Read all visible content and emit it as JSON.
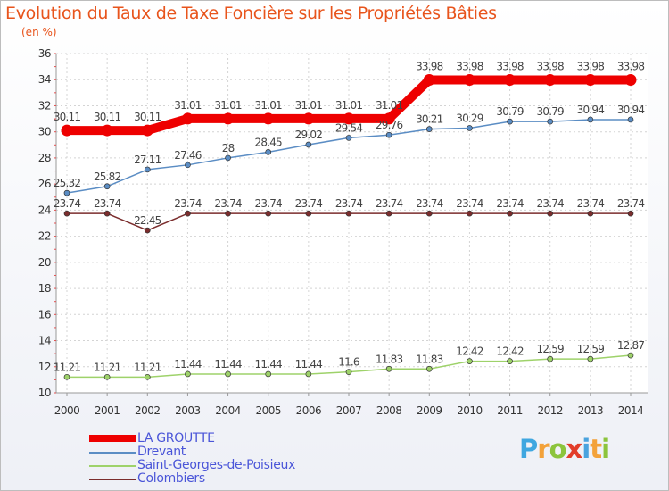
{
  "header": {
    "title": "Evolution du Taux de Taxe Foncière sur les Propriétés Bâties",
    "unit": "(en %)"
  },
  "chart_data": {
    "type": "line",
    "title": "Evolution du Taux de Taxe Foncière sur les Propriétés Bâties",
    "ylabel": "(en %)",
    "xlabel": "",
    "ylim": [
      10,
      36
    ],
    "yticks": [
      10,
      12,
      14,
      16,
      18,
      20,
      22,
      24,
      26,
      28,
      30,
      32,
      34,
      36
    ],
    "categories": [
      "2000",
      "2001",
      "2002",
      "2003",
      "2004",
      "2005",
      "2006",
      "2007",
      "2008",
      "2009",
      "2010",
      "2011",
      "2012",
      "2013",
      "2014"
    ],
    "grid": true,
    "series": [
      {
        "name": "LA GROUTTE",
        "color": "#ee0000",
        "values": [
          30.11,
          30.11,
          30.11,
          31.01,
          31.01,
          31.01,
          31.01,
          31.01,
          31.01,
          33.98,
          33.98,
          33.98,
          33.98,
          33.98,
          33.98
        ],
        "labels": [
          "30.11",
          "30.11",
          "30.11",
          "31.01",
          "31.01",
          "31.01",
          "31.01",
          "31.01",
          "31.01",
          "33.98",
          "33.98",
          "33.98",
          "33.98",
          "33.98",
          "33.98"
        ]
      },
      {
        "name": "Drevant",
        "color": "#5b8dc4",
        "values": [
          25.32,
          25.82,
          27.11,
          27.46,
          28,
          28.45,
          29.02,
          29.54,
          29.76,
          30.21,
          30.29,
          30.79,
          30.79,
          30.94,
          30.94
        ],
        "labels": [
          "25.32",
          "25.82",
          "27.11",
          "27.46",
          "28",
          "28.45",
          "29.02",
          "29.54",
          "29.76",
          "30.21",
          "30.29",
          "30.79",
          "30.79",
          "30.94",
          "30.94"
        ]
      },
      {
        "name": "Saint-Georges-de-Poisieux",
        "color": "#9ed26a",
        "values": [
          11.21,
          11.21,
          11.21,
          11.44,
          11.44,
          11.44,
          11.44,
          11.6,
          11.83,
          11.83,
          12.42,
          12.42,
          12.59,
          12.59,
          12.87
        ],
        "labels": [
          "11.21",
          "11.21",
          "11.21",
          "11.44",
          "11.44",
          "11.44",
          "11.44",
          "11.6",
          "11.83",
          "11.83",
          "12.42",
          "12.42",
          "12.59",
          "12.59",
          "12.87"
        ]
      },
      {
        "name": "Colombiers",
        "color": "#7b2d2d",
        "values": [
          23.74,
          23.74,
          22.45,
          23.74,
          23.74,
          23.74,
          23.74,
          23.74,
          23.74,
          23.74,
          23.74,
          23.74,
          23.74,
          23.74,
          23.74
        ],
        "labels": [
          "23.74",
          "23.74",
          "22.45",
          "23.74",
          "23.74",
          "23.74",
          "23.74",
          "23.74",
          "23.74",
          "23.74",
          "23.74",
          "23.74",
          "23.74",
          "23.74",
          "23.74"
        ]
      }
    ]
  },
  "legend": {
    "items": [
      {
        "label": "LA GROUTTE",
        "color": "#ee0000"
      },
      {
        "label": "Drevant",
        "color": "#5b8dc4"
      },
      {
        "label": "Saint-Georges-de-Poisieux",
        "color": "#9ed26a"
      },
      {
        "label": "Colombiers",
        "color": "#7b2d2d"
      }
    ]
  },
  "logo": {
    "text": "Proxiti",
    "letters": [
      "P",
      "r",
      "o",
      "x",
      "i",
      "t",
      "i"
    ]
  }
}
